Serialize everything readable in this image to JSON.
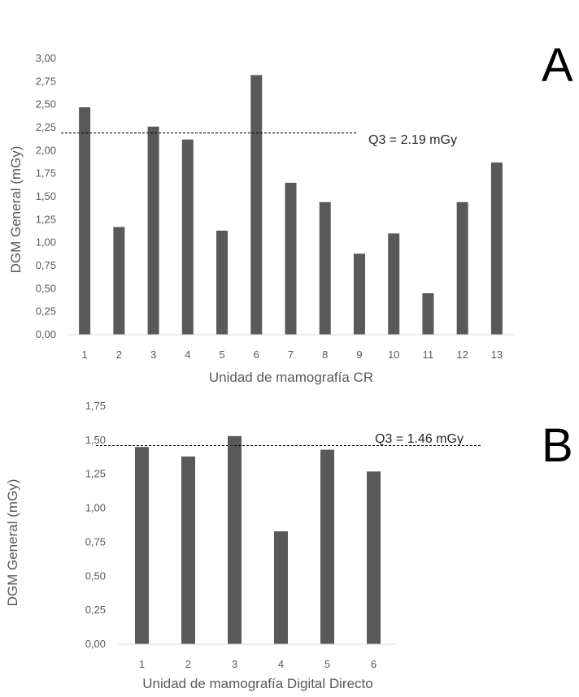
{
  "chart_data": [
    {
      "type": "bar",
      "panel_label": "A",
      "categories": [
        "1",
        "2",
        "3",
        "4",
        "5",
        "6",
        "7",
        "8",
        "9",
        "10",
        "11",
        "12",
        "13"
      ],
      "values": [
        2.47,
        1.17,
        2.26,
        2.12,
        1.13,
        2.82,
        1.65,
        1.44,
        0.88,
        1.1,
        0.45,
        1.44,
        1.87
      ],
      "xlabel": "Unidad de mamografía CR",
      "ylabel": "DGM General (mGy)",
      "ylim": [
        0,
        3
      ],
      "yticks": [
        "0,00",
        "0,25",
        "0,50",
        "0,75",
        "1,00",
        "1,25",
        "1,50",
        "1,75",
        "2,00",
        "2,25",
        "2,50",
        "2,75",
        "3,00"
      ],
      "reference_line": {
        "value": 2.19,
        "label": "Q3 = 2.19 mGy",
        "style": "dashed"
      },
      "bar_color": "#595959",
      "grid": false
    },
    {
      "type": "bar",
      "panel_label": "B",
      "categories": [
        "1",
        "2",
        "3",
        "4",
        "5",
        "6"
      ],
      "values": [
        1.45,
        1.38,
        1.53,
        0.83,
        1.43,
        1.27
      ],
      "xlabel": "Unidad de mamografía Digital Directo",
      "ylabel": "DGM General (mGy)",
      "ylim": [
        0,
        1.75
      ],
      "yticks": [
        "0,00",
        "0,25",
        "0,50",
        "0,75",
        "1,00",
        "1,25",
        "1,50",
        "1,75"
      ],
      "reference_line": {
        "value": 1.46,
        "label": "Q3 = 1.46 mGy",
        "style": "dashed"
      },
      "bar_color": "#595959",
      "grid": false
    }
  ]
}
